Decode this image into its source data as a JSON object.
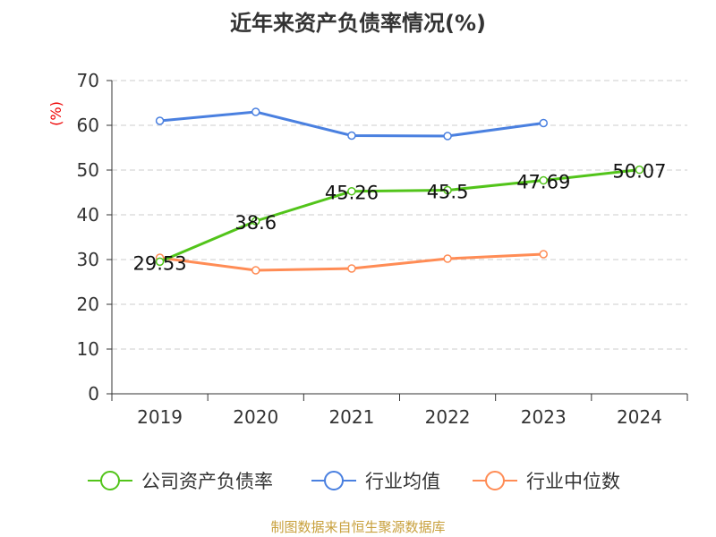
{
  "chart_data": {
    "type": "line",
    "title": "近年来资产负债率情况(%)",
    "ylabel": "(%)",
    "xlabel": "",
    "ylim": [
      0,
      70
    ],
    "yticks": [
      0,
      10,
      20,
      30,
      40,
      50,
      60,
      70
    ],
    "categories": [
      "2019",
      "2020",
      "2021",
      "2022",
      "2023",
      "2024"
    ],
    "grid": true,
    "legend_position": "bottom",
    "series": [
      {
        "name": "公司资产负债率",
        "color": "#52c41a",
        "values": [
          29.53,
          38.6,
          45.26,
          45.5,
          47.69,
          50.07
        ],
        "labels": [
          "29.53",
          "38.6",
          "45.26",
          "45.5",
          "47.69",
          "50.07"
        ]
      },
      {
        "name": "行业均值",
        "color": "#4a80e0",
        "values": [
          61.0,
          63.0,
          57.7,
          57.6,
          60.5,
          null
        ]
      },
      {
        "name": "行业中位数",
        "color": "#ff8c55",
        "values": [
          30.4,
          27.6,
          28.0,
          30.2,
          31.2,
          null
        ]
      }
    ]
  },
  "footer": "制图数据来自恒生聚源数据库"
}
